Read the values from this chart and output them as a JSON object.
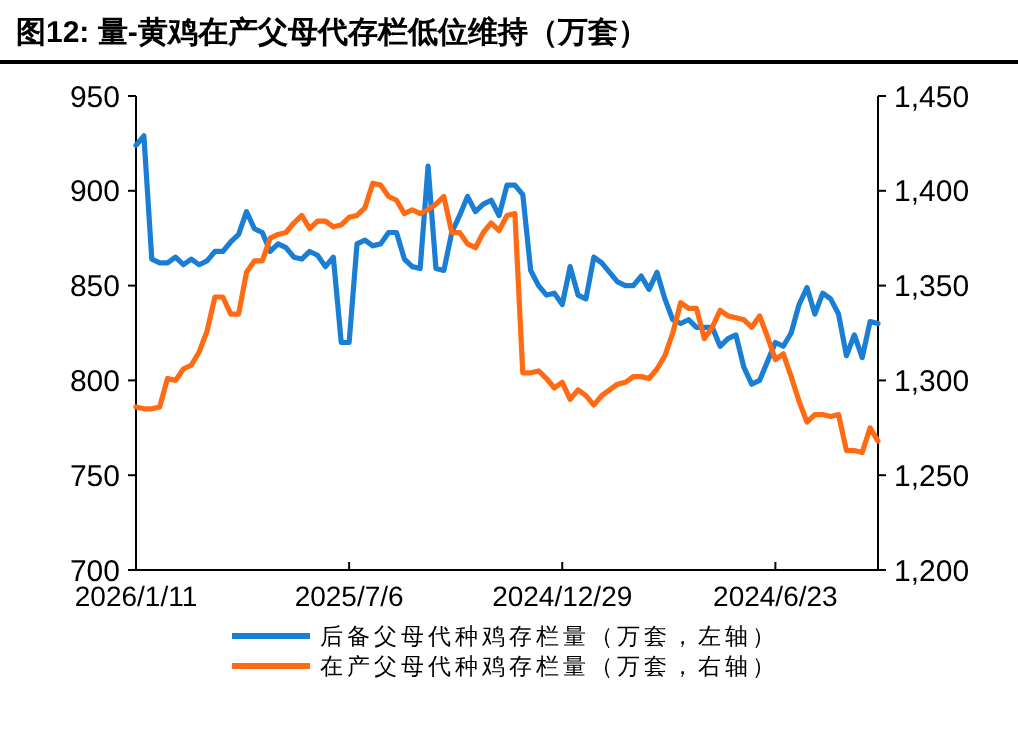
{
  "chart_data": {
    "type": "line",
    "title": "图12:  量-黄鸡在产父母代存栏低位维持（万套）",
    "categories": [
      "2026/1/11",
      null,
      null,
      null,
      null,
      null,
      null,
      null,
      null,
      null,
      null,
      null,
      null,
      null,
      null,
      null,
      null,
      null,
      null,
      null,
      null,
      null,
      null,
      null,
      null,
      null,
      null,
      "2025/7/6",
      null,
      null,
      null,
      null,
      null,
      null,
      null,
      null,
      null,
      null,
      null,
      null,
      null,
      null,
      null,
      null,
      null,
      null,
      null,
      null,
      null,
      null,
      null,
      null,
      null,
      null,
      "2024/12/29",
      null,
      null,
      null,
      null,
      null,
      null,
      null,
      null,
      null,
      null,
      null,
      null,
      null,
      null,
      null,
      null,
      null,
      null,
      null,
      null,
      null,
      null,
      null,
      null,
      null,
      null,
      "2024/6/23",
      null,
      null,
      null,
      null,
      null,
      null,
      null,
      null,
      null,
      null,
      null,
      null,
      null
    ],
    "series": [
      {
        "name": "后备父母代种鸡存栏量（万套，左轴）",
        "color": "#1a7fd4",
        "values": [
          924,
          929,
          864,
          862,
          862,
          865,
          861,
          864,
          861,
          863,
          868,
          868,
          873,
          877,
          889,
          880,
          878,
          868,
          872,
          870,
          865,
          864,
          868,
          866,
          860,
          865,
          820,
          820,
          872,
          874,
          871,
          872,
          878,
          878,
          864,
          860,
          859,
          913,
          859,
          858,
          878,
          887,
          897,
          889,
          893,
          895,
          887,
          903,
          903,
          898,
          858,
          850,
          845,
          846,
          840,
          860,
          845,
          843,
          865,
          862,
          857,
          852,
          850,
          850,
          855,
          848,
          857,
          843,
          832,
          830,
          832,
          828,
          828,
          828,
          818,
          822,
          824,
          807,
          798,
          800,
          810,
          820,
          818,
          825,
          840,
          849,
          835,
          846,
          843,
          835,
          813,
          824,
          812,
          831,
          830
        ]
      },
      {
        "name": "在产父母代种鸡存栏量（万套，右轴）",
        "color": "#ff6a13",
        "axis": "y2",
        "values": [
          1286,
          1285,
          1285,
          1286,
          1301,
          1300,
          1306,
          1308,
          1315,
          1326,
          1344,
          1344,
          1335,
          1335,
          1357,
          1363,
          1363,
          1375,
          1377,
          1378,
          1383,
          1387,
          1380,
          1384,
          1384,
          1381,
          1382,
          1386,
          1387,
          1391,
          1404,
          1403,
          1397,
          1395,
          1388,
          1390,
          1388,
          1390,
          1393,
          1397,
          1378,
          1378,
          1372,
          1370,
          1378,
          1383,
          1379,
          1387,
          1388,
          1304,
          1304,
          1305,
          1301,
          1296,
          1299,
          1290,
          1295,
          1292,
          1287,
          1292,
          1295,
          1298,
          1299,
          1302,
          1302,
          1301,
          1306,
          1313,
          1325,
          1341,
          1338,
          1338,
          1322,
          1328,
          1337,
          1334,
          1333,
          1332,
          1328,
          1334,
          1323,
          1311,
          1314,
          1302,
          1289,
          1278,
          1282,
          1282,
          1281,
          1282,
          1263,
          1263,
          1262,
          1275,
          1268
        ]
      }
    ],
    "ylim": [
      700,
      950
    ],
    "yticks": [
      700,
      750,
      800,
      850,
      900,
      950
    ],
    "y2lim": [
      1200,
      1450
    ],
    "y2ticks": [
      {
        "value": 1200,
        "label": "1,200"
      },
      {
        "value": 1250,
        "label": "1,250"
      },
      {
        "value": 1300,
        "label": "1,300"
      },
      {
        "value": 1350,
        "label": "1,350"
      },
      {
        "value": 1400,
        "label": "1,400"
      },
      {
        "value": 1450,
        "label": "1,450"
      }
    ],
    "grid": false,
    "legend": "bottom",
    "marker": "none",
    "line_style": "solid"
  }
}
